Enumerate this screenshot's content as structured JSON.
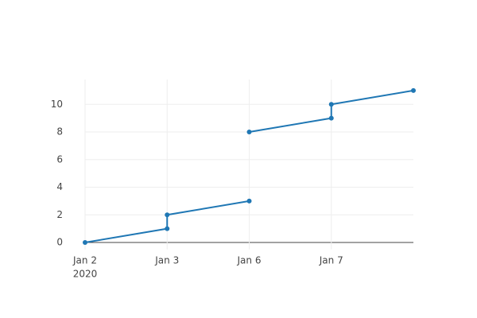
{
  "chart_data": {
    "type": "line",
    "x": [
      0,
      1,
      1,
      2,
      2,
      2,
      3,
      3,
      4
    ],
    "series": [
      {
        "color": "#1f77b4",
        "values": [
          0,
          1,
          2,
          3,
          null,
          8,
          9,
          10,
          11
        ]
      }
    ],
    "xlim": [
      0,
      4
    ],
    "xticks": [
      {
        "value": 0,
        "label": "Jan 2"
      },
      {
        "value": 1,
        "label": "Jan 3"
      },
      {
        "value": 2,
        "label": "Jan 6"
      },
      {
        "value": 3,
        "label": "Jan 7"
      }
    ],
    "x_year_label": "2020",
    "ylim": [
      -0.5,
      11.8
    ],
    "yticks": [
      0,
      2,
      4,
      6,
      8,
      10
    ],
    "grid": true
  }
}
